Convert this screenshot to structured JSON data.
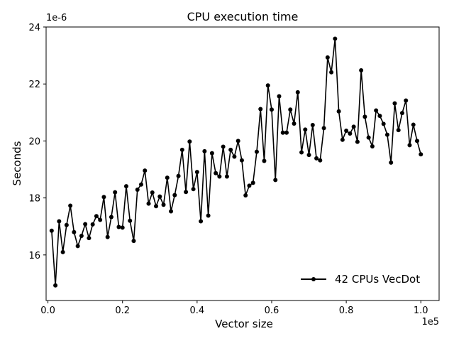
{
  "chart_data": {
    "type": "line",
    "title": "CPU execution time",
    "xlabel": "Vector size",
    "ylabel": "Seconds",
    "x_offset_label": "1e5",
    "y_offset_label": "1e-6",
    "xlim": [
      -0.0049,
      1.049
    ],
    "ylim": [
      14.4,
      24.0
    ],
    "xticks": [
      0.0,
      0.2,
      0.4,
      0.6,
      0.8,
      1.0
    ],
    "xtick_labels": [
      "0.0",
      "0.2",
      "0.4",
      "0.6",
      "0.8",
      "1.0"
    ],
    "yticks": [
      16,
      18,
      20,
      22,
      24
    ],
    "ytick_labels": [
      "16",
      "18",
      "20",
      "22",
      "24"
    ],
    "grid": false,
    "legend_position": "lower-right",
    "series": [
      {
        "name": "42 CPUs VecDot",
        "color": "#000000",
        "marker": "circle",
        "x": [
          0.01,
          0.02,
          0.03,
          0.04,
          0.05,
          0.06,
          0.07,
          0.08,
          0.09,
          0.1,
          0.11,
          0.12,
          0.13,
          0.14,
          0.15,
          0.16,
          0.17,
          0.18,
          0.19,
          0.2,
          0.21,
          0.22,
          0.23,
          0.24,
          0.25,
          0.26,
          0.27,
          0.28,
          0.29,
          0.3,
          0.31,
          0.32,
          0.33,
          0.34,
          0.35,
          0.36,
          0.37,
          0.38,
          0.39,
          0.4,
          0.41,
          0.42,
          0.43,
          0.44,
          0.45,
          0.46,
          0.47,
          0.48,
          0.49,
          0.5,
          0.51,
          0.52,
          0.53,
          0.54,
          0.55,
          0.56,
          0.57,
          0.58,
          0.59,
          0.6,
          0.61,
          0.62,
          0.63,
          0.64,
          0.65,
          0.66,
          0.67,
          0.68,
          0.69,
          0.7,
          0.71,
          0.72,
          0.73,
          0.74,
          0.75,
          0.76,
          0.77,
          0.78,
          0.79,
          0.8,
          0.81,
          0.82,
          0.83,
          0.84,
          0.85,
          0.86,
          0.87,
          0.88,
          0.89,
          0.9,
          0.91,
          0.92,
          0.93,
          0.94,
          0.95,
          0.96,
          0.97,
          0.98,
          0.99,
          1.0
        ],
        "y": [
          16.85,
          14.93,
          17.18,
          16.1,
          17.05,
          17.73,
          16.8,
          16.31,
          16.67,
          17.08,
          16.59,
          17.07,
          17.36,
          17.23,
          18.03,
          16.63,
          17.33,
          18.2,
          16.98,
          16.96,
          18.41,
          17.2,
          16.49,
          18.29,
          18.47,
          18.96,
          17.8,
          18.19,
          17.71,
          18.05,
          17.76,
          18.71,
          17.53,
          18.1,
          18.77,
          19.69,
          18.21,
          19.98,
          18.31,
          18.91,
          17.18,
          19.64,
          17.38,
          19.57,
          18.87,
          18.75,
          19.8,
          18.75,
          19.69,
          19.45,
          20.0,
          19.32,
          18.09,
          18.43,
          18.53,
          19.62,
          21.12,
          19.3,
          21.95,
          21.1,
          18.63,
          21.57,
          20.29,
          20.29,
          21.1,
          20.61,
          21.71,
          19.6,
          20.4,
          19.51,
          20.56,
          19.39,
          19.32,
          20.45,
          22.93,
          22.41,
          23.59,
          21.04,
          20.04,
          20.36,
          20.26,
          20.5,
          19.97,
          22.48,
          20.85,
          20.12,
          19.81,
          21.07,
          20.88,
          20.6,
          20.22,
          19.24,
          21.32,
          20.38,
          20.98,
          21.42,
          19.85,
          20.57,
          20.0,
          19.53
        ]
      }
    ]
  }
}
